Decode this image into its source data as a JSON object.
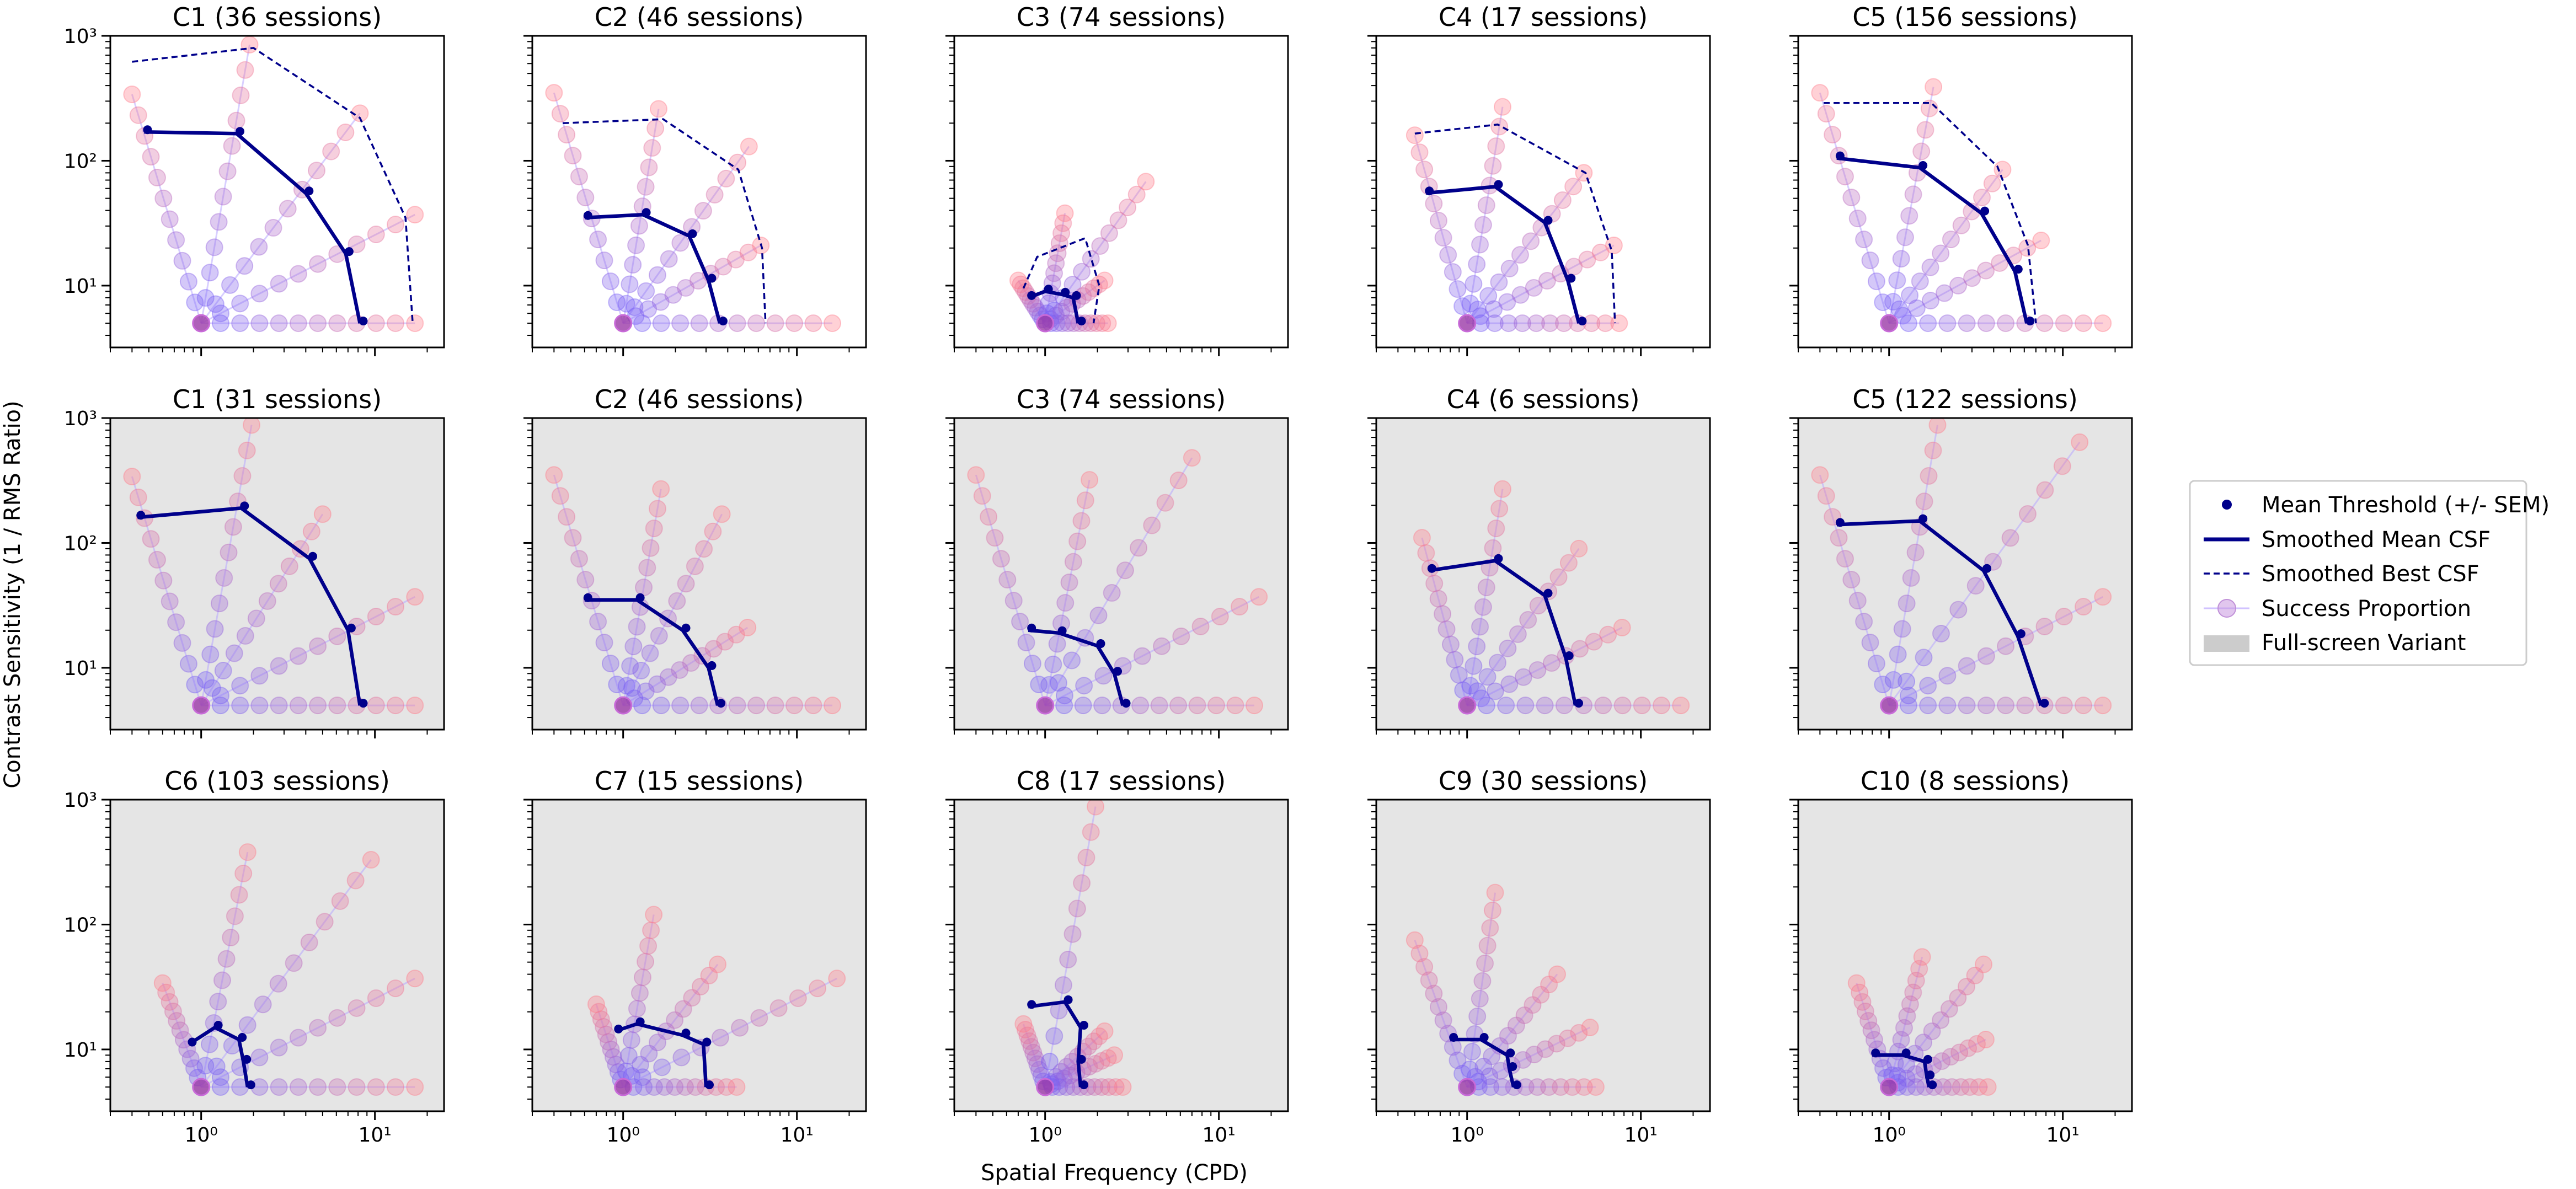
{
  "figure": {
    "ylabel": "Contrast Sensitivity (1 / RMS Ratio)",
    "xlabel": "Spatial Frequency (CPD)"
  },
  "colors": {
    "mean": "#00008b",
    "success_low": "#6a5cff",
    "success_high": "#ff7a8a",
    "fullscreen_bg": "#e5e5e5",
    "legend_patch": "#cccccc"
  },
  "legend": {
    "items": [
      {
        "label": "Mean Threshold (+/- SEM)",
        "kind": "dot"
      },
      {
        "label": "Smoothed Mean CSF",
        "kind": "solid"
      },
      {
        "label": "Smoothed Best CSF",
        "kind": "dashed"
      },
      {
        "label": "Success Proportion",
        "kind": "circle"
      },
      {
        "label": "Full-screen Variant",
        "kind": "patch"
      }
    ]
  },
  "axes": {
    "x_ticks": [
      {
        "value": 1,
        "label": "10⁰"
      },
      {
        "value": 10,
        "label": "10¹"
      }
    ],
    "y_ticks": [
      {
        "value": 10,
        "label": "10¹"
      },
      {
        "value": 100,
        "label": "10²"
      },
      {
        "value": 1000,
        "label": "10³"
      }
    ]
  },
  "chart_data": [
    {
      "title": "C1 (36 sessions)",
      "type": "line",
      "xscale": "log",
      "yscale": "log",
      "xlim": [
        0.3,
        25
      ],
      "ylim": [
        3.2,
        1000
      ],
      "full_screen": false,
      "mean": [
        [
          0.47,
          170
        ],
        [
          1.6,
          165
        ],
        [
          4.0,
          55
        ],
        [
          6.8,
          18
        ],
        [
          8.2,
          5
        ]
      ],
      "best": [
        [
          0.4,
          620
        ],
        [
          2.0,
          800
        ],
        [
          8.2,
          220
        ],
        [
          15,
          35
        ],
        [
          16.5,
          5
        ]
      ],
      "rays": [
        [
          0.4,
          340
        ],
        [
          1.9,
          850
        ],
        [
          8.2,
          240
        ],
        [
          17,
          37
        ],
        [
          17,
          5
        ]
      ]
    },
    {
      "title": "C2 (46 sessions)",
      "type": "line",
      "xscale": "log",
      "yscale": "log",
      "xlim": [
        0.3,
        25
      ],
      "ylim": [
        3.2,
        1000
      ],
      "full_screen": false,
      "mean": [
        [
          0.6,
          35
        ],
        [
          1.3,
          37
        ],
        [
          2.4,
          25
        ],
        [
          3.1,
          11
        ],
        [
          3.6,
          5
        ]
      ],
      "best": [
        [
          0.45,
          200
        ],
        [
          1.7,
          215
        ],
        [
          4.6,
          85
        ],
        [
          6.3,
          20
        ],
        [
          6.6,
          5
        ]
      ],
      "rays": [
        [
          0.4,
          350
        ],
        [
          1.6,
          260
        ],
        [
          5.3,
          130
        ],
        [
          6.2,
          21
        ],
        [
          16,
          5
        ]
      ]
    },
    {
      "title": "C3 (74 sessions)",
      "type": "line",
      "xscale": "log",
      "yscale": "log",
      "xlim": [
        0.3,
        25
      ],
      "ylim": [
        3.2,
        1000
      ],
      "full_screen": false,
      "mean": [
        [
          0.8,
          8
        ],
        [
          1.0,
          9
        ],
        [
          1.25,
          8.5
        ],
        [
          1.45,
          8
        ],
        [
          1.55,
          5
        ]
      ],
      "best": [
        [
          0.75,
          9.5
        ],
        [
          0.9,
          17
        ],
        [
          1.7,
          24
        ],
        [
          2.05,
          10
        ],
        [
          1.9,
          5
        ]
      ],
      "rays": [
        [
          0.7,
          11
        ],
        [
          1.3,
          38
        ],
        [
          3.8,
          68
        ],
        [
          2.2,
          11
        ],
        [
          2.3,
          5
        ]
      ]
    },
    {
      "title": "C4 (17 sessions)",
      "type": "line",
      "xscale": "log",
      "yscale": "log",
      "xlim": [
        0.3,
        25
      ],
      "ylim": [
        3.2,
        1000
      ],
      "full_screen": false,
      "mean": [
        [
          0.58,
          55
        ],
        [
          1.45,
          62
        ],
        [
          2.8,
          32
        ],
        [
          3.8,
          11
        ],
        [
          4.4,
          5
        ]
      ],
      "best": [
        [
          0.5,
          165
        ],
        [
          1.5,
          195
        ],
        [
          4.8,
          80
        ],
        [
          6.8,
          19
        ],
        [
          7.1,
          5
        ]
      ],
      "rays": [
        [
          0.5,
          160
        ],
        [
          1.6,
          270
        ],
        [
          4.7,
          80
        ],
        [
          7.0,
          21
        ],
        [
          7.5,
          5
        ]
      ]
    },
    {
      "title": "C5 (156 sessions)",
      "type": "line",
      "xscale": "log",
      "yscale": "log",
      "xlim": [
        0.3,
        25
      ],
      "ylim": [
        3.2,
        1000
      ],
      "full_screen": false,
      "mean": [
        [
          0.5,
          105
        ],
        [
          1.5,
          88
        ],
        [
          3.4,
          38
        ],
        [
          5.3,
          13
        ],
        [
          6.2,
          5
        ]
      ],
      "best": [
        [
          0.42,
          290
        ],
        [
          1.75,
          290
        ],
        [
          4.2,
          90
        ],
        [
          6.3,
          21
        ],
        [
          7.0,
          5
        ]
      ],
      "rays": [
        [
          0.4,
          350
        ],
        [
          1.8,
          390
        ],
        [
          4.5,
          85
        ],
        [
          7.5,
          23
        ],
        [
          17,
          5
        ]
      ]
    },
    {
      "title": "C1 (31 sessions)",
      "type": "line",
      "xscale": "log",
      "yscale": "log",
      "xlim": [
        0.3,
        25
      ],
      "ylim": [
        3.2,
        1000
      ],
      "full_screen": true,
      "mean": [
        [
          0.43,
          160
        ],
        [
          1.7,
          190
        ],
        [
          4.2,
          75
        ],
        [
          7.0,
          20
        ],
        [
          8.2,
          5
        ]
      ],
      "best": [],
      "rays": [
        [
          0.4,
          340
        ],
        [
          1.95,
          880
        ],
        [
          5.0,
          170
        ],
        [
          17,
          37
        ],
        [
          17,
          5
        ]
      ]
    },
    {
      "title": "C2 (46 sessions)",
      "type": "line",
      "xscale": "log",
      "yscale": "log",
      "xlim": [
        0.3,
        25
      ],
      "ylim": [
        3.2,
        1000
      ],
      "full_screen": true,
      "mean": [
        [
          0.6,
          35
        ],
        [
          1.2,
          35
        ],
        [
          2.2,
          20
        ],
        [
          3.1,
          10
        ],
        [
          3.5,
          5
        ]
      ],
      "best": [],
      "rays": [
        [
          0.4,
          350
        ],
        [
          1.65,
          270
        ],
        [
          3.7,
          170
        ],
        [
          5.2,
          21
        ],
        [
          16,
          5
        ]
      ]
    },
    {
      "title": "C3 (74 sessions)",
      "type": "line",
      "xscale": "log",
      "yscale": "log",
      "xlim": [
        0.3,
        25
      ],
      "ylim": [
        3.2,
        1000
      ],
      "full_screen": true,
      "mean": [
        [
          0.8,
          20
        ],
        [
          1.2,
          19
        ],
        [
          2.0,
          15
        ],
        [
          2.5,
          9
        ],
        [
          2.8,
          5
        ]
      ],
      "best": [],
      "rays": [
        [
          0.4,
          350
        ],
        [
          1.8,
          320
        ],
        [
          7.0,
          480
        ],
        [
          17,
          37
        ],
        [
          16,
          5
        ]
      ]
    },
    {
      "title": "C4 (6 sessions)",
      "type": "line",
      "xscale": "log",
      "yscale": "log",
      "xlim": [
        0.3,
        25
      ],
      "ylim": [
        3.2,
        1000
      ],
      "full_screen": true,
      "mean": [
        [
          0.6,
          60
        ],
        [
          1.45,
          72
        ],
        [
          2.8,
          38
        ],
        [
          3.7,
          12
        ],
        [
          4.2,
          5
        ]
      ],
      "best": [],
      "rays": [
        [
          0.55,
          110
        ],
        [
          1.6,
          270
        ],
        [
          4.4,
          90
        ],
        [
          7.8,
          21
        ],
        [
          17,
          5
        ]
      ]
    },
    {
      "title": "C5 (122 sessions)",
      "type": "line",
      "xscale": "log",
      "yscale": "log",
      "xlim": [
        0.3,
        25
      ],
      "ylim": [
        3.2,
        1000
      ],
      "full_screen": true,
      "mean": [
        [
          0.5,
          140
        ],
        [
          1.5,
          150
        ],
        [
          3.5,
          60
        ],
        [
          5.5,
          18
        ],
        [
          7.5,
          5
        ]
      ],
      "best": [],
      "rays": [
        [
          0.4,
          350
        ],
        [
          1.9,
          880
        ],
        [
          12.5,
          640
        ],
        [
          17,
          37
        ],
        [
          17,
          5
        ]
      ]
    },
    {
      "title": "C6 (103 sessions)",
      "type": "line",
      "xscale": "log",
      "yscale": "log",
      "xlim": [
        0.3,
        25
      ],
      "ylim": [
        3.2,
        1000
      ],
      "full_screen": true,
      "mean": [
        [
          0.85,
          11
        ],
        [
          1.2,
          15
        ],
        [
          1.65,
          12
        ],
        [
          1.75,
          8
        ],
        [
          1.85,
          5
        ]
      ],
      "best": [],
      "rays": [
        [
          0.6,
          34
        ],
        [
          1.85,
          380
        ],
        [
          9.5,
          330
        ],
        [
          17,
          37
        ],
        [
          17,
          5
        ]
      ]
    },
    {
      "title": "C7 (15 sessions)",
      "type": "line",
      "xscale": "log",
      "yscale": "log",
      "xlim": [
        0.3,
        25
      ],
      "ylim": [
        3.2,
        1000
      ],
      "full_screen": true,
      "mean": [
        [
          0.9,
          14
        ],
        [
          1.2,
          16
        ],
        [
          2.2,
          13
        ],
        [
          2.9,
          11
        ],
        [
          3.0,
          5
        ]
      ],
      "best": [],
      "rays": [
        [
          0.7,
          23
        ],
        [
          1.5,
          120
        ],
        [
          3.5,
          48
        ],
        [
          17,
          37
        ],
        [
          4.5,
          5
        ]
      ]
    },
    {
      "title": "C8 (17 sessions)",
      "type": "line",
      "xscale": "log",
      "yscale": "log",
      "xlim": [
        0.3,
        25
      ],
      "ylim": [
        3.2,
        1000
      ],
      "full_screen": true,
      "mean": [
        [
          0.8,
          22
        ],
        [
          1.3,
          24
        ],
        [
          1.6,
          15
        ],
        [
          1.55,
          8
        ],
        [
          1.6,
          5
        ]
      ],
      "best": [],
      "rays": [
        [
          0.75,
          16
        ],
        [
          1.95,
          880
        ],
        [
          2.2,
          14
        ],
        [
          2.5,
          9
        ],
        [
          2.8,
          5
        ]
      ]
    },
    {
      "title": "C9 (30 sessions)",
      "type": "line",
      "xscale": "log",
      "yscale": "log",
      "xlim": [
        0.3,
        25
      ],
      "ylim": [
        3.2,
        1000
      ],
      "full_screen": true,
      "mean": [
        [
          0.8,
          12
        ],
        [
          1.2,
          12
        ],
        [
          1.7,
          9
        ],
        [
          1.75,
          7
        ],
        [
          1.85,
          5
        ]
      ],
      "best": [],
      "rays": [
        [
          0.5,
          75
        ],
        [
          1.45,
          180
        ],
        [
          3.3,
          40
        ],
        [
          5.1,
          15
        ],
        [
          5.5,
          5
        ]
      ]
    },
    {
      "title": "C10 (8 sessions)",
      "type": "line",
      "xscale": "log",
      "yscale": "log",
      "xlim": [
        0.3,
        25
      ],
      "ylim": [
        3.2,
        1000
      ],
      "full_screen": true,
      "mean": [
        [
          0.8,
          9
        ],
        [
          1.2,
          9
        ],
        [
          1.6,
          8
        ],
        [
          1.65,
          6
        ],
        [
          1.7,
          5
        ]
      ],
      "best": [],
      "rays": [
        [
          0.65,
          34
        ],
        [
          1.55,
          55
        ],
        [
          3.5,
          48
        ],
        [
          3.6,
          12
        ],
        [
          3.7,
          5
        ]
      ]
    }
  ]
}
